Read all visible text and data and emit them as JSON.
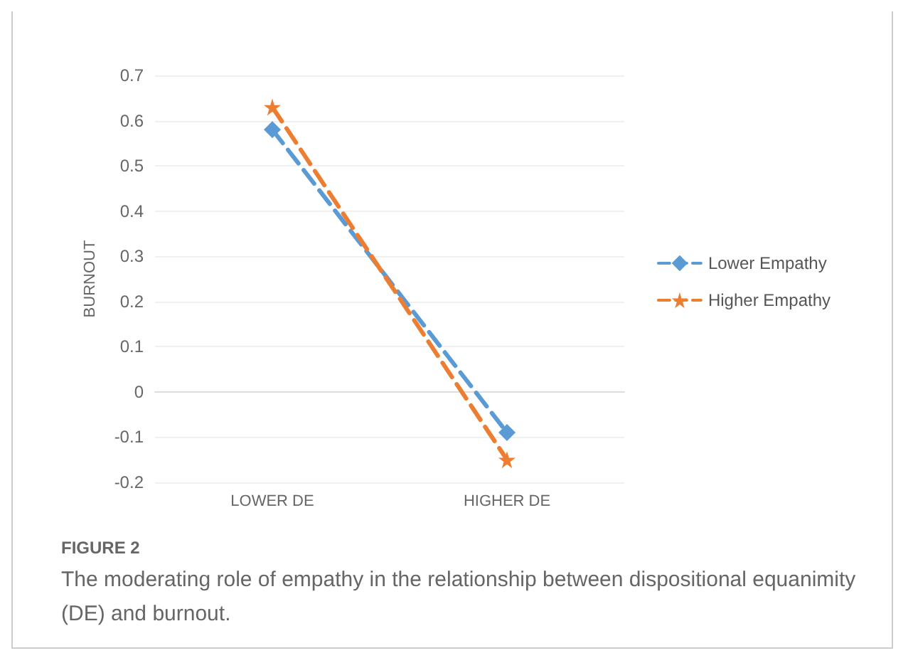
{
  "chart_data": {
    "type": "line",
    "ylabel": "BURNOUT",
    "categories": [
      "LOWER DE",
      "HIGHER DE"
    ],
    "series": [
      {
        "name": "Lower Empathy",
        "color": "#5b9bd5",
        "values": [
          0.58,
          -0.09
        ],
        "marker": "diamond",
        "line_style": "dashed"
      },
      {
        "name": "Higher Empathy",
        "color": "#ed7d31",
        "values": [
          0.63,
          -0.15
        ],
        "marker": "star",
        "line_style": "dashed"
      }
    ],
    "ylim": [
      -0.2,
      0.7
    ],
    "yticks": [
      -0.2,
      -0.1,
      0,
      0.1,
      0.2,
      0.3,
      0.4,
      0.5,
      0.6,
      0.7
    ],
    "grid": "y",
    "legend": "right",
    "annotations": [
      "FIGURE 2",
      "The moderating role of empathy in the relationship between dispositional equanimity (DE) and burnout."
    ]
  }
}
